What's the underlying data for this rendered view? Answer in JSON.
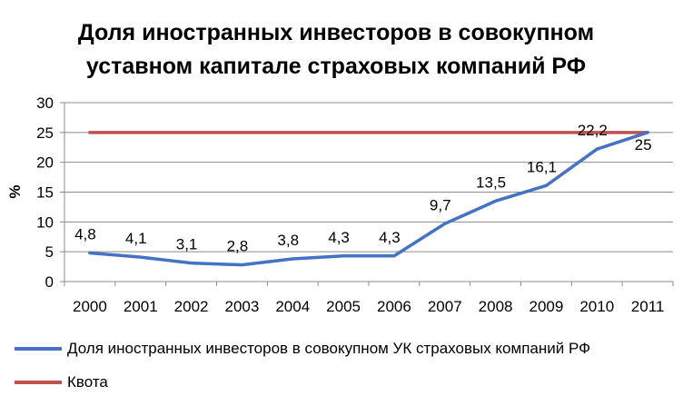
{
  "chart_data": {
    "type": "line",
    "title_lines": [
      "Доля иностранных инвесторов в совокупном",
      "уставном капитале страховых компаний РФ"
    ],
    "xlabel": "",
    "ylabel": "%",
    "categories": [
      "2000",
      "2001",
      "2002",
      "2003",
      "2004",
      "2005",
      "2006",
      "2007",
      "2008",
      "2009",
      "2010",
      "2011"
    ],
    "ylim": [
      0,
      30
    ],
    "yticks": [
      "0",
      "5",
      "10",
      "15",
      "20",
      "25",
      "30"
    ],
    "grid": true,
    "legend_position": "bottom",
    "series": [
      {
        "name": "Доля иностранных инвесторов в совокупном УК страховых компаний РФ",
        "color": "#4472C4",
        "values": [
          4.8,
          4.1,
          3.1,
          2.8,
          3.8,
          4.3,
          4.3,
          9.7,
          13.5,
          16.1,
          22.2,
          25
        ],
        "labels": [
          "4,8",
          "4,1",
          "3,1",
          "2,8",
          "3,8",
          "4,3",
          "4,3",
          "9,7",
          "13,5",
          "16,1",
          "22,2",
          "25"
        ]
      },
      {
        "name": "Квота",
        "color": "#C0504D",
        "values": [
          25,
          25,
          25,
          25,
          25,
          25,
          25,
          25,
          25,
          25,
          25,
          25
        ]
      }
    ]
  }
}
